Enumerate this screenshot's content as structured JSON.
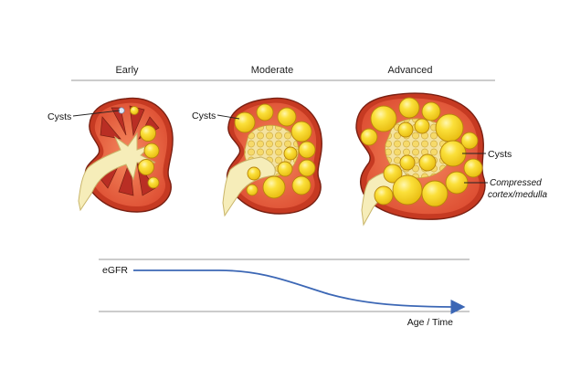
{
  "stages": {
    "early": "Early",
    "moderate": "Moderate",
    "advanced": "Advanced"
  },
  "callouts": {
    "cysts_early": "Cysts",
    "cysts_moderate": "Cysts",
    "cysts_advanced": "Cysts",
    "compressed_line1": "Compressed",
    "compressed_line2": "cortex/medulla"
  },
  "graph": {
    "y_label": "eGFR",
    "x_label": "Age / Time"
  },
  "colors": {
    "cyst_fill": "#f7d21a",
    "cyst_stroke": "#b8860b",
    "cortex": "#e4573a",
    "capsule": "#c63a22",
    "medulla": "#b92e24",
    "pelvis": "#f6edb9",
    "curve": "#3c67b5"
  }
}
